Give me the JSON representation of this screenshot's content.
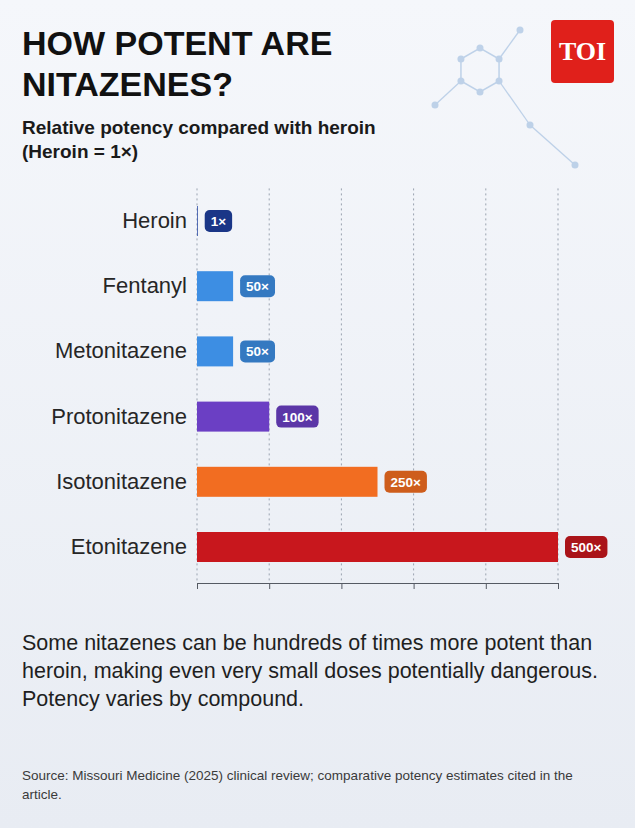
{
  "chart_data": {
    "type": "bar",
    "orientation": "horizontal",
    "logo": "TOI",
    "title": "HOW POTENT ARE NITAZENES?",
    "subtitle": "Relative potency compared with heroin (Heroin = 1×)",
    "categories": [
      "Heroin",
      "Fentanyl",
      "Metonitazene",
      "Protonitazene",
      "Isotonitazene",
      "Etonitazene"
    ],
    "values": [
      1,
      50,
      50,
      100,
      250,
      500
    ],
    "value_labels": [
      "1×",
      "50×",
      "50×",
      "100×",
      "250×",
      "500×"
    ],
    "colors": [
      "#1e3f9e",
      "#3d8ee3",
      "#3d8ee3",
      "#6b3fc4",
      "#f26d21",
      "#c8171d"
    ],
    "data_labels": true,
    "xlim": [
      0,
      500
    ],
    "xticks": [
      0,
      100,
      200,
      300,
      400,
      500
    ],
    "grid": true,
    "tick_labels": "y",
    "caption": "Some nitazenes can be hundreds of times more potent than heroin, making even very small doses potentially dangerous. Potency varies by compound.",
    "source": "Source: Missouri Medicine (2025) clinical review; comparative potency estimates cited in the article."
  }
}
